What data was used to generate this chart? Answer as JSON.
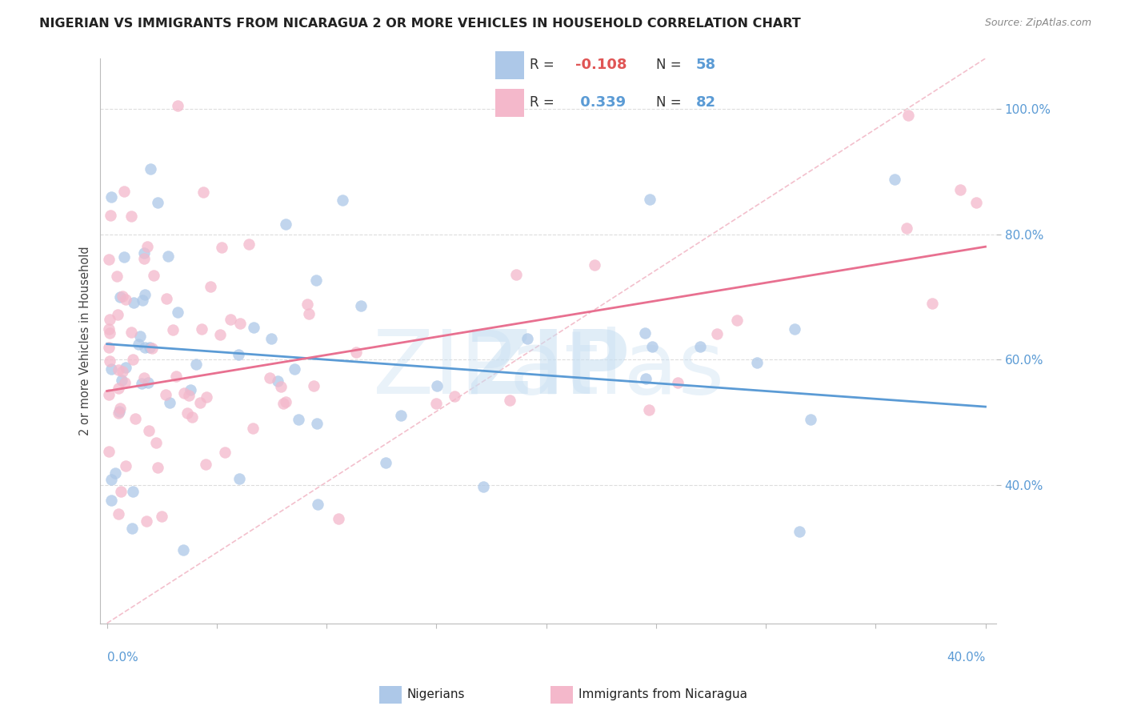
{
  "title": "NIGERIAN VS IMMIGRANTS FROM NICARAGUA 2 OR MORE VEHICLES IN HOUSEHOLD CORRELATION CHART",
  "source": "Source: ZipAtlas.com",
  "ylabel": "2 or more Vehicles in Household",
  "blue_label": "Nigerians",
  "pink_label": "Immigrants from Nicaragua",
  "blue_R": -0.108,
  "blue_N": 58,
  "pink_R": 0.339,
  "pink_N": 82,
  "blue_dot_color": "#adc8e8",
  "pink_dot_color": "#f4b8cb",
  "blue_line_color": "#5b9bd5",
  "pink_line_color": "#e87090",
  "ref_line_color": "#f0b0c0",
  "grid_color": "#dddddd",
  "title_color": "#222222",
  "source_color": "#888888",
  "tick_color": "#5b9bd5",
  "ylabel_color": "#444444",
  "xmin": 0.0,
  "xmax": 40.0,
  "ymin": 18.0,
  "ymax": 108.0,
  "yticks": [
    40,
    60,
    80,
    100
  ],
  "ytick_labels": [
    "40.0%",
    "60.0%",
    "80.0%",
    "100.0%"
  ],
  "blue_line_x0": 0.0,
  "blue_line_y0": 62.5,
  "blue_line_x1": 40.0,
  "blue_line_y1": 52.5,
  "pink_line_x0": 0.0,
  "pink_line_y0": 55.0,
  "pink_line_x1": 40.0,
  "pink_line_y1": 78.0,
  "ref_line_x0": 0.0,
  "ref_line_y0": 18.0,
  "ref_line_x1": 40.0,
  "ref_line_y1": 108.0,
  "legend_R_label": "R = ",
  "legend_N_label": "N = ",
  "blue_R_str": "-0.108",
  "blue_N_str": "58",
  "pink_R_str": "0.339",
  "pink_N_str": "82",
  "blue_R_color": "#e05555",
  "pink_R_color": "#5b9bd5",
  "N_color": "#5b9bd5"
}
